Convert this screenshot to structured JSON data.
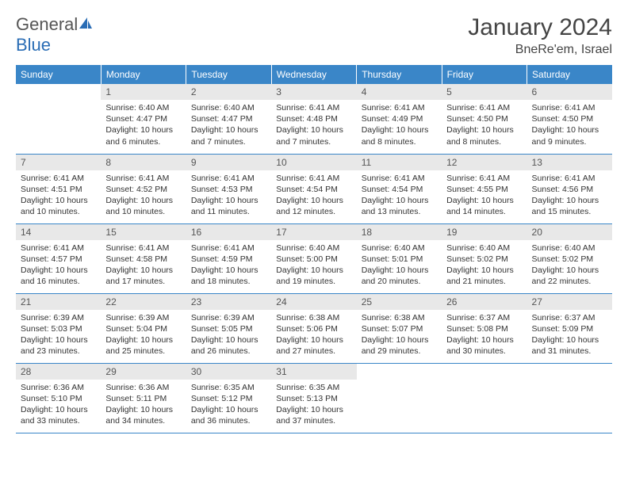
{
  "brand": {
    "part1": "General",
    "part2": "Blue"
  },
  "title": "January 2024",
  "location": "BneRe'em, Israel",
  "header_color": "#3a86c8",
  "day_names": [
    "Sunday",
    "Monday",
    "Tuesday",
    "Wednesday",
    "Thursday",
    "Friday",
    "Saturday"
  ],
  "weeks": [
    [
      null,
      {
        "n": "1",
        "sr": "6:40 AM",
        "ss": "4:47 PM",
        "dl": "10 hours and 6 minutes."
      },
      {
        "n": "2",
        "sr": "6:40 AM",
        "ss": "4:47 PM",
        "dl": "10 hours and 7 minutes."
      },
      {
        "n": "3",
        "sr": "6:41 AM",
        "ss": "4:48 PM",
        "dl": "10 hours and 7 minutes."
      },
      {
        "n": "4",
        "sr": "6:41 AM",
        "ss": "4:49 PM",
        "dl": "10 hours and 8 minutes."
      },
      {
        "n": "5",
        "sr": "6:41 AM",
        "ss": "4:50 PM",
        "dl": "10 hours and 8 minutes."
      },
      {
        "n": "6",
        "sr": "6:41 AM",
        "ss": "4:50 PM",
        "dl": "10 hours and 9 minutes."
      }
    ],
    [
      {
        "n": "7",
        "sr": "6:41 AM",
        "ss": "4:51 PM",
        "dl": "10 hours and 10 minutes."
      },
      {
        "n": "8",
        "sr": "6:41 AM",
        "ss": "4:52 PM",
        "dl": "10 hours and 10 minutes."
      },
      {
        "n": "9",
        "sr": "6:41 AM",
        "ss": "4:53 PM",
        "dl": "10 hours and 11 minutes."
      },
      {
        "n": "10",
        "sr": "6:41 AM",
        "ss": "4:54 PM",
        "dl": "10 hours and 12 minutes."
      },
      {
        "n": "11",
        "sr": "6:41 AM",
        "ss": "4:54 PM",
        "dl": "10 hours and 13 minutes."
      },
      {
        "n": "12",
        "sr": "6:41 AM",
        "ss": "4:55 PM",
        "dl": "10 hours and 14 minutes."
      },
      {
        "n": "13",
        "sr": "6:41 AM",
        "ss": "4:56 PM",
        "dl": "10 hours and 15 minutes."
      }
    ],
    [
      {
        "n": "14",
        "sr": "6:41 AM",
        "ss": "4:57 PM",
        "dl": "10 hours and 16 minutes."
      },
      {
        "n": "15",
        "sr": "6:41 AM",
        "ss": "4:58 PM",
        "dl": "10 hours and 17 minutes."
      },
      {
        "n": "16",
        "sr": "6:41 AM",
        "ss": "4:59 PM",
        "dl": "10 hours and 18 minutes."
      },
      {
        "n": "17",
        "sr": "6:40 AM",
        "ss": "5:00 PM",
        "dl": "10 hours and 19 minutes."
      },
      {
        "n": "18",
        "sr": "6:40 AM",
        "ss": "5:01 PM",
        "dl": "10 hours and 20 minutes."
      },
      {
        "n": "19",
        "sr": "6:40 AM",
        "ss": "5:02 PM",
        "dl": "10 hours and 21 minutes."
      },
      {
        "n": "20",
        "sr": "6:40 AM",
        "ss": "5:02 PM",
        "dl": "10 hours and 22 minutes."
      }
    ],
    [
      {
        "n": "21",
        "sr": "6:39 AM",
        "ss": "5:03 PM",
        "dl": "10 hours and 23 minutes."
      },
      {
        "n": "22",
        "sr": "6:39 AM",
        "ss": "5:04 PM",
        "dl": "10 hours and 25 minutes."
      },
      {
        "n": "23",
        "sr": "6:39 AM",
        "ss": "5:05 PM",
        "dl": "10 hours and 26 minutes."
      },
      {
        "n": "24",
        "sr": "6:38 AM",
        "ss": "5:06 PM",
        "dl": "10 hours and 27 minutes."
      },
      {
        "n": "25",
        "sr": "6:38 AM",
        "ss": "5:07 PM",
        "dl": "10 hours and 29 minutes."
      },
      {
        "n": "26",
        "sr": "6:37 AM",
        "ss": "5:08 PM",
        "dl": "10 hours and 30 minutes."
      },
      {
        "n": "27",
        "sr": "6:37 AM",
        "ss": "5:09 PM",
        "dl": "10 hours and 31 minutes."
      }
    ],
    [
      {
        "n": "28",
        "sr": "6:36 AM",
        "ss": "5:10 PM",
        "dl": "10 hours and 33 minutes."
      },
      {
        "n": "29",
        "sr": "6:36 AM",
        "ss": "5:11 PM",
        "dl": "10 hours and 34 minutes."
      },
      {
        "n": "30",
        "sr": "6:35 AM",
        "ss": "5:12 PM",
        "dl": "10 hours and 36 minutes."
      },
      {
        "n": "31",
        "sr": "6:35 AM",
        "ss": "5:13 PM",
        "dl": "10 hours and 37 minutes."
      },
      null,
      null,
      null
    ]
  ],
  "labels": {
    "sunrise": "Sunrise:",
    "sunset": "Sunset:",
    "daylight": "Daylight:"
  }
}
